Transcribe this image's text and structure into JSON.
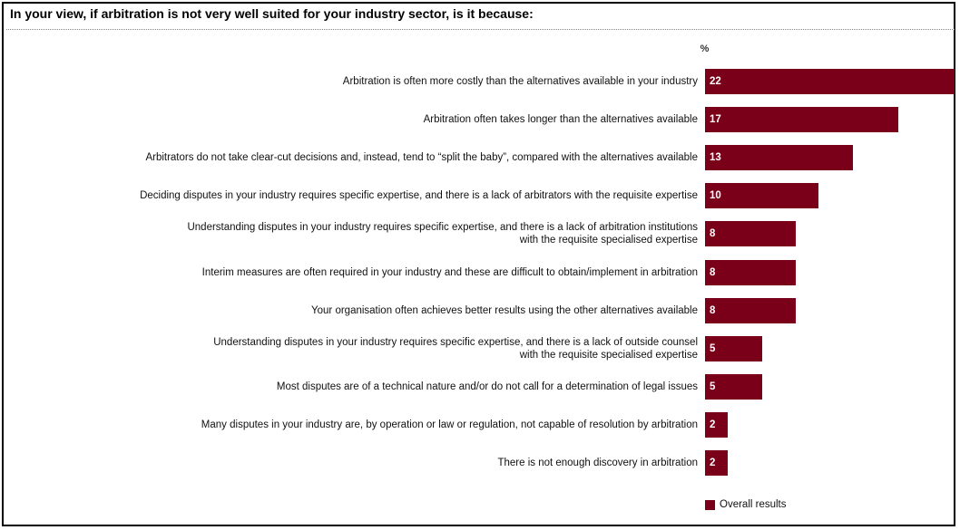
{
  "chart_data": {
    "type": "bar",
    "orientation": "horizontal",
    "title": "In your view, if arbitration is not very well suited for your industry sector, is it because:",
    "unit": "%",
    "categories": [
      [
        "Arbitration is often more costly than the alternatives available in your industry"
      ],
      [
        "Arbitration often takes longer than the alternatives available"
      ],
      [
        "Arbitrators do not take clear-cut decisions and, instead, tend to “split the baby”, compared with the alternatives available"
      ],
      [
        "Deciding disputes in your industry requires specific expertise, and there is a lack of arbitrators with the requisite expertise"
      ],
      [
        "Understanding disputes in your industry requires specific expertise, and there is a lack of arbitration institutions",
        "with the requisite specialised expertise"
      ],
      [
        "Interim measures are often required in your industry and these are difficult to obtain/implement in arbitration"
      ],
      [
        "Your organisation often achieves better results using the other alternatives available"
      ],
      [
        "Understanding disputes in your industry requires specific expertise, and there is a lack of outside counsel",
        "with the requisite specialised expertise"
      ],
      [
        "Most disputes are of a technical nature and/or do not call for a determination of legal issues"
      ],
      [
        "Many disputes in your industry are, by operation or law or regulation, not capable of resolution by arbitration"
      ],
      [
        "There is not enough discovery in arbitration"
      ]
    ],
    "series": [
      {
        "name": "Overall results",
        "values": [
          22,
          17,
          13,
          10,
          8,
          8,
          8,
          5,
          5,
          2,
          2
        ],
        "color": "#7a0019"
      }
    ],
    "xlim": [
      0,
      22
    ],
    "grid": false,
    "legend": "bottom"
  }
}
